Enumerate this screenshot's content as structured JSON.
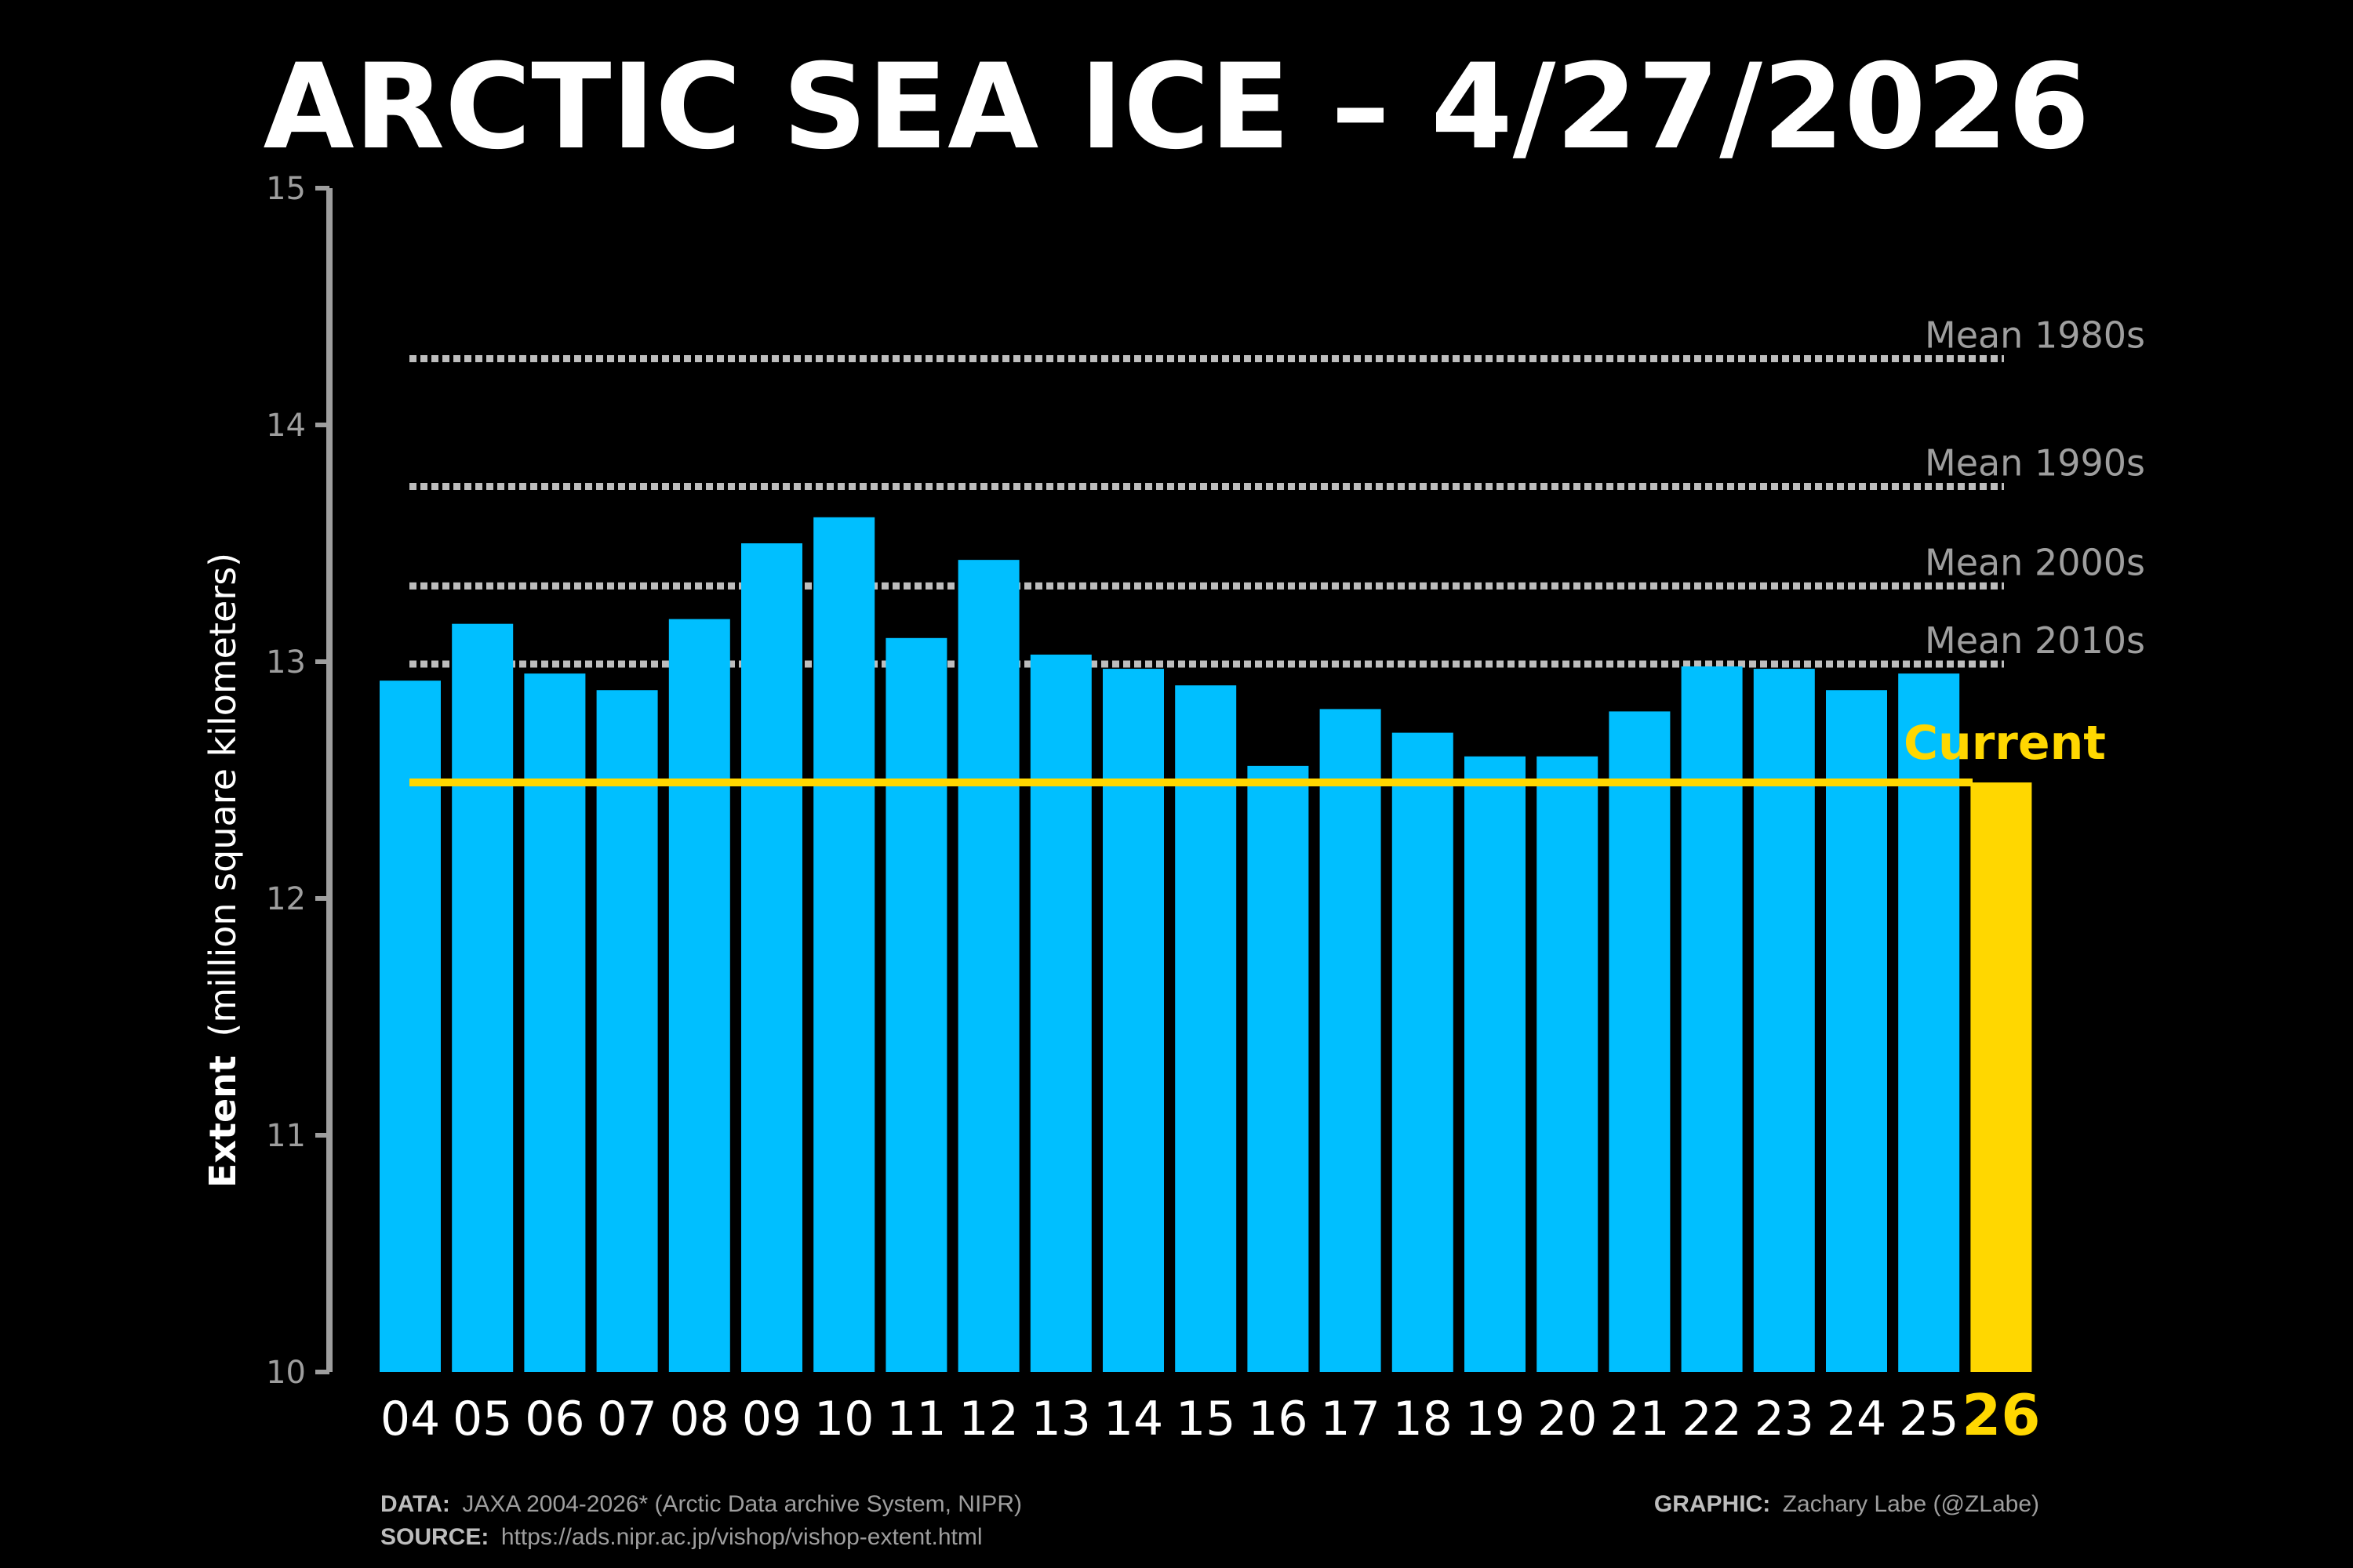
{
  "colors": {
    "background": "#000000",
    "bar": "#00BFFF",
    "current": "#FFD700",
    "axis": "#9e9e9e",
    "mean_line": "#bdbdbd",
    "text": "#ffffff"
  },
  "chart_data": {
    "type": "bar",
    "title": "ARCTIC SEA ICE – 4/27/2026",
    "ylabel_bold": "Extent",
    "ylabel_rest": "(million square kilometers)",
    "ylim": [
      10,
      15
    ],
    "yticks": [
      "10",
      "11",
      "12",
      "13",
      "14",
      "15"
    ],
    "categories": [
      "04",
      "05",
      "06",
      "07",
      "08",
      "09",
      "10",
      "11",
      "12",
      "13",
      "14",
      "15",
      "16",
      "17",
      "18",
      "19",
      "20",
      "21",
      "22",
      "23",
      "24",
      "25",
      "26"
    ],
    "values": [
      12.92,
      13.16,
      12.95,
      12.88,
      13.18,
      13.5,
      13.61,
      13.1,
      13.43,
      13.03,
      12.97,
      12.9,
      12.56,
      12.8,
      12.7,
      12.6,
      12.6,
      12.79,
      12.98,
      12.97,
      12.88,
      12.95,
      12.49
    ],
    "highlight_category": "26",
    "means": [
      {
        "label": "Mean 1980s",
        "value": 14.28
      },
      {
        "label": "Mean 1990s",
        "value": 13.74
      },
      {
        "label": "Mean 2000s",
        "value": 13.32
      },
      {
        "label": "Mean 2010s",
        "value": 12.99
      }
    ],
    "current": {
      "label": "Current",
      "value": 12.49
    }
  },
  "footer": {
    "data_key": "DATA:",
    "data_text": "JAXA 2004-2026* (Arctic Data archive System, NIPR)",
    "source_key": "SOURCE:",
    "source_text": "https://ads.nipr.ac.jp/vishop/vishop-extent.html",
    "graphic_key": "GRAPHIC:",
    "graphic_text": "Zachary Labe (@ZLabe)"
  }
}
